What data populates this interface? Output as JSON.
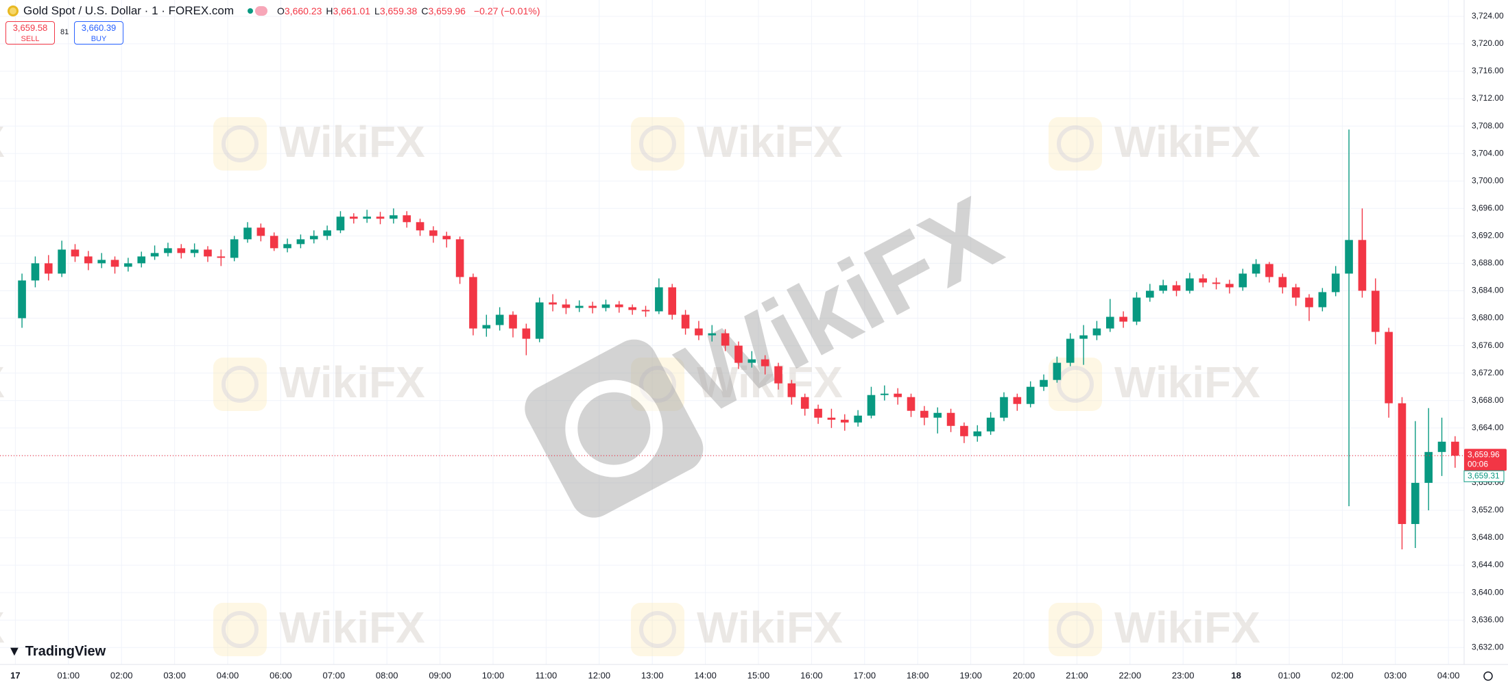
{
  "header": {
    "symbol": "Gold Spot / U.S. Dollar · 1 · FOREX.com",
    "ohlc": [
      {
        "key": "O",
        "value": "3,660.23"
      },
      {
        "key": "H",
        "value": "3,661.01"
      },
      {
        "key": "L",
        "value": "3,659.38"
      },
      {
        "key": "C",
        "value": "3,659.96"
      }
    ],
    "change": "−0.27 (−0.01%)",
    "sell": {
      "price": "3,659.58",
      "label": "SELL"
    },
    "spread": "81",
    "buy": {
      "price": "3,660.39",
      "label": "BUY"
    }
  },
  "brand": "TradingView",
  "watermark": "WikiFX",
  "chart_data": {
    "type": "candlestick",
    "up_color": "#089981",
    "down_color": "#f23645",
    "grid": true,
    "categories": [
      "17",
      null,
      null,
      null,
      "01:00",
      null,
      null,
      null,
      "02:00",
      null,
      null,
      null,
      "03:00",
      null,
      null,
      null,
      "04:00",
      null,
      null,
      null,
      "06:00",
      null,
      null,
      null,
      "07:00",
      null,
      null,
      null,
      "08:00",
      null,
      null,
      null,
      "09:00",
      null,
      null,
      null,
      "10:00",
      null,
      null,
      null,
      "11:00",
      null,
      null,
      null,
      "12:00",
      null,
      null,
      null,
      "13:00",
      null,
      null,
      null,
      "14:00",
      null,
      null,
      null,
      "15:00",
      null,
      null,
      null,
      "16:00",
      null,
      null,
      null,
      "17:00",
      null,
      null,
      null,
      "18:00",
      null,
      null,
      null,
      "19:00",
      null,
      null,
      null,
      "20:00",
      null,
      null,
      null,
      "21:00",
      null,
      null,
      null,
      "22:00",
      null,
      null,
      null,
      "23:00",
      null,
      null,
      null,
      "18",
      null,
      null,
      null,
      "01:00",
      null,
      null,
      null,
      "02:00",
      null,
      null,
      null,
      "03:00",
      null,
      null,
      null,
      "04:00"
    ],
    "open": [
      3680,
      3685.5,
      3688,
      3686.5,
      3690,
      3689,
      3688,
      3688.5,
      3687.5,
      3688,
      3689,
      3689.5,
      3690.2,
      3689.5,
      3690,
      3689,
      3688.8,
      3691.5,
      3693.2,
      3692,
      3690.2,
      3690.8,
      3691.5,
      3692,
      3692.8,
      3694.8,
      3694.5,
      3694.8,
      3694.5,
      3695,
      3694,
      3692.8,
      3692,
      3691.5,
      3686,
      3678.5,
      3679,
      3680.5,
      3678.5,
      3677,
      3682.3,
      3682,
      3681.5,
      3681.8,
      3681.5,
      3682,
      3681.6,
      3681.2,
      3681,
      3684.5,
      3680.5,
      3678.5,
      3677.5,
      3677.8,
      3676,
      3673.5,
      3674,
      3673,
      3670.5,
      3668.5,
      3666.8,
      3665.5,
      3665.2,
      3664.8,
      3665.8,
      3668.8,
      3669,
      3668.5,
      3666.5,
      3665.5,
      3666.2,
      3664.3,
      3662.8,
      3663.5,
      3665.5,
      3668.5,
      3667.5,
      3670,
      3671,
      3673.5,
      3677,
      3677.5,
      3678.5,
      3680.2,
      3679.5,
      3683,
      3684,
      3684.8,
      3684,
      3685.8,
      3685.2,
      3685,
      3684.5,
      3686.5,
      3687.9,
      3686,
      3684.5,
      3683,
      3681.6,
      3683.8,
      3686.5,
      3691.4,
      3684,
      3678,
      3667.6,
      3650,
      3656,
      3660.5,
      3662
    ],
    "high": [
      3686.5,
      3689,
      3689.2,
      3691.3,
      3690.8,
      3689.8,
      3689.5,
      3689,
      3688.8,
      3689.7,
      3690.6,
      3691,
      3690.8,
      3690.9,
      3690.5,
      3690,
      3692,
      3694,
      3693.8,
      3692.5,
      3691.6,
      3692.2,
      3692.8,
      3693.5,
      3695.6,
      3695.3,
      3695.8,
      3695.5,
      3696,
      3695.6,
      3694.5,
      3693.4,
      3692.6,
      3691.9,
      3686.5,
      3680.5,
      3681.6,
      3681,
      3679.2,
      3683,
      3683.5,
      3682.8,
      3682.6,
      3682.4,
      3682.7,
      3682.5,
      3682,
      3681.8,
      3685.8,
      3685,
      3681.2,
      3679.6,
      3679,
      3678.4,
      3676.6,
      3675.2,
      3674.6,
      3673.5,
      3671,
      3669,
      3667.4,
      3666.8,
      3666,
      3666.6,
      3670,
      3670.2,
      3669.8,
      3669,
      3667.2,
      3667,
      3666.8,
      3664.8,
      3664.4,
      3666.3,
      3669.2,
      3669,
      3670.8,
      3671.8,
      3674.4,
      3677.8,
      3679,
      3679.6,
      3682.8,
      3681,
      3683.8,
      3685,
      3685.6,
      3685.4,
      3686.6,
      3686.4,
      3685.9,
      3685.6,
      3687.2,
      3688.6,
      3688.2,
      3686.5,
      3685,
      3683.5,
      3684.4,
      3687.6,
      3707.5,
      3696,
      3685.8,
      3678.6,
      3668.5,
      3665,
      3666.9,
      3665.5,
      3662.8
    ],
    "low": [
      3678.6,
      3684.5,
      3685.5,
      3686,
      3688.2,
      3687,
      3687.3,
      3686.5,
      3686.8,
      3687.4,
      3688.5,
      3689,
      3688.7,
      3688.9,
      3688.2,
      3687.6,
      3688.3,
      3691,
      3691.2,
      3689.8,
      3689.6,
      3690.2,
      3690.9,
      3691.4,
      3692.4,
      3693.8,
      3693.9,
      3693.7,
      3693.8,
      3693.2,
      3692,
      3691,
      3690.3,
      3685,
      3677.5,
      3677.3,
      3678.2,
      3677.2,
      3674.6,
      3676.5,
      3681,
      3680.6,
      3680.9,
      3680.7,
      3681,
      3680.8,
      3680.5,
      3680.2,
      3680.6,
      3679.8,
      3677.6,
      3676.8,
      3676.6,
      3675.2,
      3672.6,
      3672.8,
      3671.8,
      3669.6,
      3667.4,
      3665.8,
      3664.6,
      3664,
      3663.6,
      3664.2,
      3665.4,
      3668,
      3667.4,
      3665.6,
      3664.4,
      3663.2,
      3663.4,
      3661.8,
      3662,
      3663,
      3665,
      3666.5,
      3667,
      3669.4,
      3670.6,
      3673,
      3673.2,
      3676.8,
      3678,
      3678.6,
      3679,
      3682.4,
      3683.6,
      3683.2,
      3683.6,
      3684.5,
      3684.2,
      3683.6,
      3684,
      3686,
      3685.2,
      3683.6,
      3681.8,
      3679.6,
      3681,
      3683.2,
      3652.6,
      3683,
      3676.2,
      3665.5,
      3646.3,
      3646.5,
      3652,
      3657,
      3658.2
    ],
    "close": [
      3685.5,
      3688,
      3686.5,
      3690,
      3689,
      3688,
      3688.5,
      3687.5,
      3688,
      3689,
      3689.5,
      3690.2,
      3689.5,
      3690,
      3689,
      3688.8,
      3691.5,
      3693.2,
      3692,
      3690.2,
      3690.8,
      3691.5,
      3692,
      3692.8,
      3694.8,
      3694.5,
      3694.8,
      3694.5,
      3695,
      3694,
      3692.8,
      3692,
      3691.5,
      3686,
      3678.5,
      3679,
      3680.5,
      3678.5,
      3677,
      3682.3,
      3682,
      3681.5,
      3681.8,
      3681.5,
      3682,
      3681.6,
      3681.2,
      3681,
      3684.5,
      3680.5,
      3678.5,
      3677.5,
      3677.8,
      3676,
      3673.5,
      3674,
      3673,
      3670.5,
      3668.5,
      3666.8,
      3665.5,
      3665.2,
      3664.8,
      3665.8,
      3668.8,
      3669,
      3668.5,
      3666.5,
      3665.5,
      3666.2,
      3664.3,
      3662.8,
      3663.5,
      3665.5,
      3668.5,
      3667.5,
      3670,
      3671,
      3673.5,
      3677,
      3677.5,
      3678.5,
      3680.2,
      3679.5,
      3683,
      3684,
      3684.8,
      3684,
      3685.8,
      3685.2,
      3685,
      3684.5,
      3686.5,
      3687.9,
      3686,
      3684.5,
      3683,
      3681.6,
      3683.8,
      3686.5,
      3691.4,
      3684,
      3678,
      3667.6,
      3650,
      3656,
      3660.5,
      3662,
      3659.96
    ],
    "ylim": [
      3629.53,
      3726.38
    ],
    "yticks": [
      {
        "value": 3632,
        "label": "3,632.00"
      },
      {
        "value": 3636,
        "label": "3,636.00"
      },
      {
        "value": 3640,
        "label": "3,640.00"
      },
      {
        "value": 3644,
        "label": "3,644.00"
      },
      {
        "value": 3648,
        "label": "3,648.00"
      },
      {
        "value": 3652,
        "label": "3,652.00"
      },
      {
        "value": 3656,
        "label": "3,656.00"
      },
      {
        "value": 3660,
        "label": "3,660.00"
      },
      {
        "value": 3664,
        "label": "3,664.00"
      },
      {
        "value": 3668,
        "label": "3,668.00"
      },
      {
        "value": 3672,
        "label": "3,672.00"
      },
      {
        "value": 3676,
        "label": "3,676.00"
      },
      {
        "value": 3680,
        "label": "3,680.00"
      },
      {
        "value": 3684,
        "label": "3,684.00"
      },
      {
        "value": 3688,
        "label": "3,688.00"
      },
      {
        "value": 3692,
        "label": "3,692.00"
      },
      {
        "value": 3696,
        "label": "3,696.00"
      },
      {
        "value": 3700,
        "label": "3,700.00"
      },
      {
        "value": 3704,
        "label": "3,704.00"
      },
      {
        "value": 3708,
        "label": "3,708.00"
      },
      {
        "value": 3712,
        "label": "3,712.00"
      },
      {
        "value": 3716,
        "label": "3,716.00"
      },
      {
        "value": 3720,
        "label": "3,720.00"
      },
      {
        "value": 3724,
        "label": "3,724.00"
      }
    ],
    "last_price": {
      "value": 3659.96,
      "label": "3,659.96"
    },
    "countdown": "00:06",
    "bid_price": {
      "value": 3659.31,
      "label": "3,659.31"
    }
  }
}
